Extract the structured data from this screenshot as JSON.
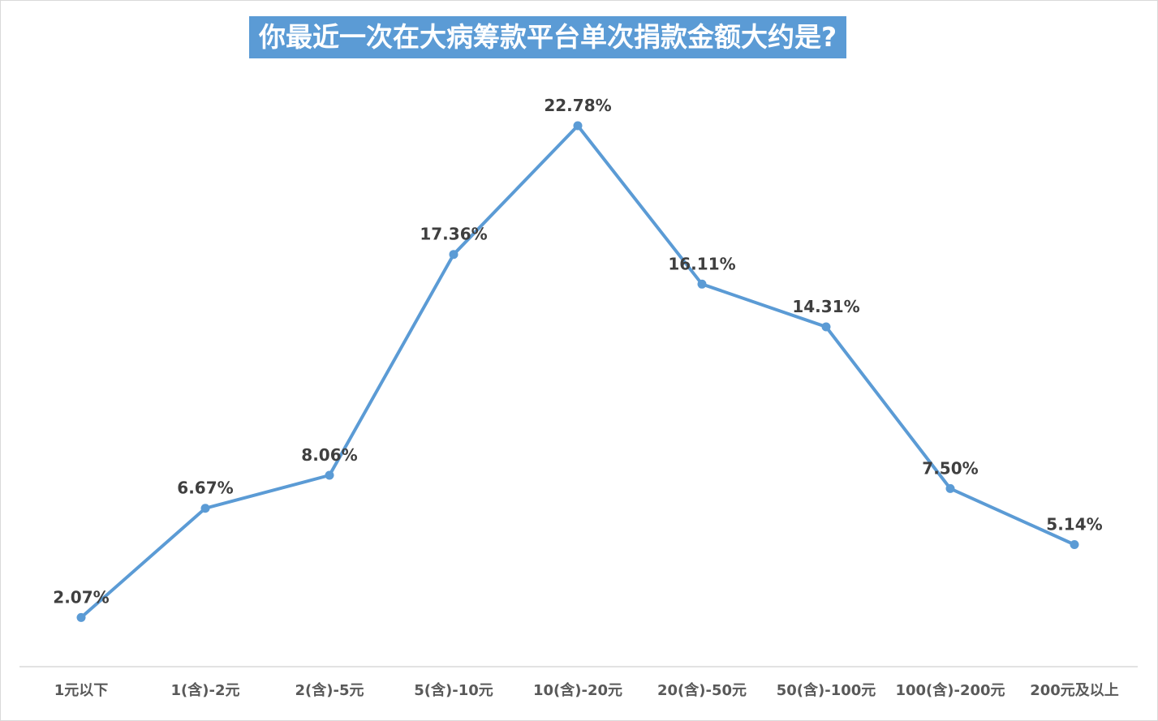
{
  "chart_data": {
    "type": "line",
    "title": "你最近一次在大病筹款平台单次捐款金额大约是?",
    "categories": [
      "1元以下",
      "1(含)-2元",
      "2(含)-5元",
      "5(含)-10元",
      "10(含)-20元",
      "20(含)-50元",
      "50(含)-100元",
      "100(含)-200元",
      "200元及以上"
    ],
    "series": [
      {
        "values": [
          2.07,
          6.67,
          8.06,
          17.36,
          22.78,
          16.11,
          14.31,
          7.5,
          5.14
        ],
        "labels": [
          "2.07%",
          "6.67%",
          "8.06%",
          "17.36%",
          "22.78%",
          "16.11%",
          "14.31%",
          "7.50%",
          "5.14%"
        ],
        "color": "#5b9bd5"
      }
    ],
    "ylim": [
      0,
      25
    ],
    "grid": false,
    "legend": "none",
    "xlabel": "",
    "ylabel": ""
  }
}
